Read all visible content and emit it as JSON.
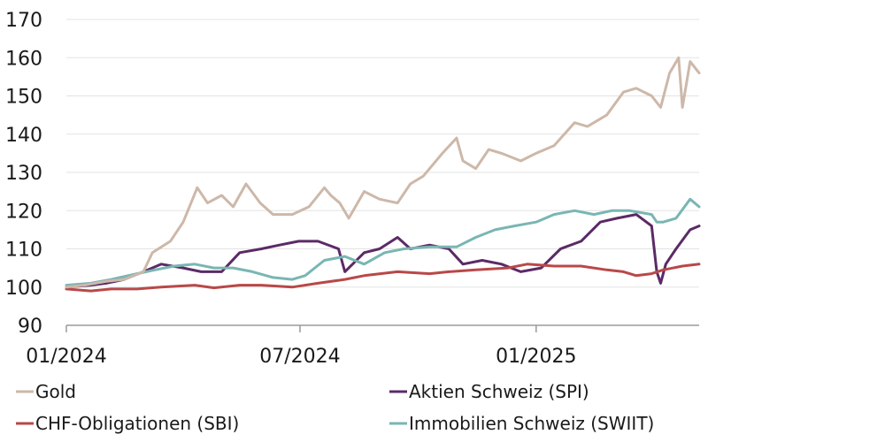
{
  "chart_data": {
    "type": "line",
    "title": "",
    "xlabel": "",
    "ylabel": "",
    "ylim": [
      90,
      170
    ],
    "yticks": [
      90,
      100,
      110,
      120,
      130,
      140,
      150,
      160,
      170
    ],
    "xlim": [
      "2024-01-01",
      "2025-05-08"
    ],
    "xticks": [
      {
        "value": "2024-01-01",
        "label": "01/2024"
      },
      {
        "value": "2024-07-01",
        "label": "07/2024"
      },
      {
        "value": "2025-01-01",
        "label": "01/2025"
      }
    ],
    "grid": "horizontal",
    "legend_position": "bottom",
    "series": [
      {
        "name": "Gold",
        "color": "#cdb8a9",
        "points": [
          [
            "2024-01-01",
            100
          ],
          [
            "2024-01-15",
            100.5
          ],
          [
            "2024-02-01",
            101.5
          ],
          [
            "2024-02-15",
            102
          ],
          [
            "2024-03-01",
            104
          ],
          [
            "2024-03-08",
            109
          ],
          [
            "2024-03-22",
            112
          ],
          [
            "2024-04-01",
            117
          ],
          [
            "2024-04-12",
            126
          ],
          [
            "2024-04-20",
            122
          ],
          [
            "2024-05-01",
            124
          ],
          [
            "2024-05-10",
            121
          ],
          [
            "2024-05-20",
            127
          ],
          [
            "2024-05-31",
            122
          ],
          [
            "2024-06-10",
            119
          ],
          [
            "2024-06-25",
            119
          ],
          [
            "2024-07-08",
            121
          ],
          [
            "2024-07-20",
            126
          ],
          [
            "2024-07-25",
            124
          ],
          [
            "2024-08-01",
            122
          ],
          [
            "2024-08-08",
            118
          ],
          [
            "2024-08-20",
            125
          ],
          [
            "2024-09-01",
            123
          ],
          [
            "2024-09-15",
            122
          ],
          [
            "2024-09-25",
            127
          ],
          [
            "2024-10-05",
            129
          ],
          [
            "2024-10-20",
            135
          ],
          [
            "2024-10-31",
            139
          ],
          [
            "2024-11-05",
            133
          ],
          [
            "2024-11-15",
            131
          ],
          [
            "2024-11-25",
            136
          ],
          [
            "2024-12-05",
            135
          ],
          [
            "2024-12-20",
            133
          ],
          [
            "2025-01-01",
            135
          ],
          [
            "2025-01-15",
            137
          ],
          [
            "2025-01-31",
            143
          ],
          [
            "2025-02-10",
            142
          ],
          [
            "2025-02-25",
            145
          ],
          [
            "2025-03-10",
            151
          ],
          [
            "2025-03-20",
            152
          ],
          [
            "2025-04-01",
            150
          ],
          [
            "2025-04-08",
            147
          ],
          [
            "2025-04-15",
            156
          ],
          [
            "2025-04-22",
            160
          ],
          [
            "2025-04-25",
            147
          ],
          [
            "2025-05-01",
            159
          ],
          [
            "2025-05-08",
            156
          ]
        ]
      },
      {
        "name": "Aktien Schweiz (SPI)",
        "color": "#5b2a66",
        "points": [
          [
            "2024-01-01",
            100
          ],
          [
            "2024-01-20",
            100.5
          ],
          [
            "2024-02-01",
            101
          ],
          [
            "2024-02-15",
            102
          ],
          [
            "2024-03-01",
            104
          ],
          [
            "2024-03-15",
            106
          ],
          [
            "2024-04-01",
            105
          ],
          [
            "2024-04-15",
            104
          ],
          [
            "2024-05-01",
            104
          ],
          [
            "2024-05-15",
            109
          ],
          [
            "2024-06-01",
            110
          ],
          [
            "2024-06-15",
            111
          ],
          [
            "2024-06-30",
            112
          ],
          [
            "2024-07-15",
            112
          ],
          [
            "2024-07-31",
            110
          ],
          [
            "2024-08-05",
            104
          ],
          [
            "2024-08-20",
            109
          ],
          [
            "2024-09-01",
            110
          ],
          [
            "2024-09-15",
            113
          ],
          [
            "2024-09-25",
            110
          ],
          [
            "2024-10-10",
            111
          ],
          [
            "2024-10-25",
            110
          ],
          [
            "2024-11-05",
            106
          ],
          [
            "2024-11-20",
            107
          ],
          [
            "2024-12-05",
            106
          ],
          [
            "2024-12-20",
            104
          ],
          [
            "2025-01-05",
            105
          ],
          [
            "2025-01-20",
            110
          ],
          [
            "2025-02-05",
            112
          ],
          [
            "2025-02-20",
            117
          ],
          [
            "2025-03-05",
            118
          ],
          [
            "2025-03-20",
            119
          ],
          [
            "2025-04-01",
            116
          ],
          [
            "2025-04-05",
            104
          ],
          [
            "2025-04-08",
            101
          ],
          [
            "2025-04-12",
            106
          ],
          [
            "2025-04-20",
            110
          ],
          [
            "2025-05-01",
            115
          ],
          [
            "2025-05-08",
            116
          ]
        ]
      },
      {
        "name": "CHF-Obligationen (SBI)",
        "color": "#b94848",
        "points": [
          [
            "2024-01-01",
            99.5
          ],
          [
            "2024-01-20",
            99
          ],
          [
            "2024-02-05",
            99.5
          ],
          [
            "2024-02-25",
            99.5
          ],
          [
            "2024-03-15",
            100
          ],
          [
            "2024-04-10",
            100.5
          ],
          [
            "2024-04-25",
            99.8
          ],
          [
            "2024-05-15",
            100.5
          ],
          [
            "2024-06-01",
            100.5
          ],
          [
            "2024-06-25",
            100
          ],
          [
            "2024-07-15",
            101
          ],
          [
            "2024-08-05",
            102
          ],
          [
            "2024-08-20",
            103
          ],
          [
            "2024-09-15",
            104
          ],
          [
            "2024-10-10",
            103.5
          ],
          [
            "2024-10-25",
            104
          ],
          [
            "2024-11-15",
            104.5
          ],
          [
            "2024-12-10",
            105
          ],
          [
            "2024-12-25",
            106
          ],
          [
            "2025-01-15",
            105.5
          ],
          [
            "2025-02-05",
            105.5
          ],
          [
            "2025-02-25",
            104.5
          ],
          [
            "2025-03-10",
            104
          ],
          [
            "2025-03-20",
            103
          ],
          [
            "2025-04-01",
            103.5
          ],
          [
            "2025-04-10",
            104.5
          ],
          [
            "2025-04-25",
            105.5
          ],
          [
            "2025-05-08",
            106
          ]
        ]
      },
      {
        "name": "Immobilien Schweiz (SWIIT)",
        "color": "#79b6b3",
        "points": [
          [
            "2024-01-01",
            100.5
          ],
          [
            "2024-01-20",
            101
          ],
          [
            "2024-02-05",
            102
          ],
          [
            "2024-02-25",
            103.5
          ],
          [
            "2024-03-10",
            104.5
          ],
          [
            "2024-03-25",
            105.5
          ],
          [
            "2024-04-10",
            106
          ],
          [
            "2024-04-25",
            105
          ],
          [
            "2024-05-10",
            105
          ],
          [
            "2024-05-25",
            104
          ],
          [
            "2024-06-10",
            102.5
          ],
          [
            "2024-06-25",
            102
          ],
          [
            "2024-07-05",
            103
          ],
          [
            "2024-07-20",
            107
          ],
          [
            "2024-08-05",
            108
          ],
          [
            "2024-08-20",
            106
          ],
          [
            "2024-09-05",
            109
          ],
          [
            "2024-09-20",
            110
          ],
          [
            "2024-10-10",
            110.5
          ],
          [
            "2024-10-31",
            110.5
          ],
          [
            "2024-11-15",
            113
          ],
          [
            "2024-11-30",
            115
          ],
          [
            "2024-12-15",
            116
          ],
          [
            "2025-01-01",
            117
          ],
          [
            "2025-01-15",
            119
          ],
          [
            "2025-01-31",
            120
          ],
          [
            "2025-02-15",
            119
          ],
          [
            "2025-03-01",
            120
          ],
          [
            "2025-03-15",
            120
          ],
          [
            "2025-04-01",
            119
          ],
          [
            "2025-04-05",
            117
          ],
          [
            "2025-04-10",
            117
          ],
          [
            "2025-04-20",
            118
          ],
          [
            "2025-05-01",
            123
          ],
          [
            "2025-05-08",
            121
          ]
        ]
      }
    ]
  }
}
